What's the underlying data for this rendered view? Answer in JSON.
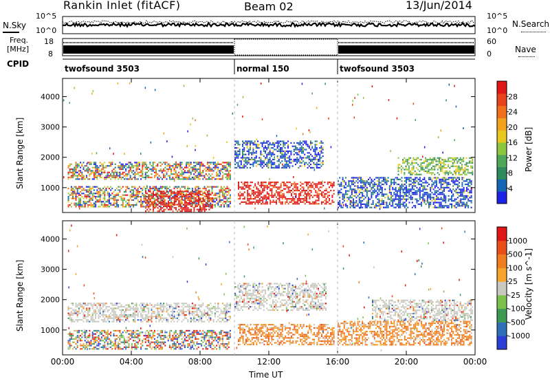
{
  "header": {
    "site": "Rankin Inlet (fitACF)",
    "beam": "Beam 02",
    "date": "13/Jun/2014"
  },
  "noise_panel": {
    "left_label": "N.Sky",
    "right_label": "N.Search",
    "left_ticks": [
      "10^5",
      "10^0"
    ],
    "right_ticks": [
      "10^5",
      "10^0"
    ]
  },
  "freq_panel": {
    "left_label_1": "Freq.",
    "left_label_2": "[MHz]",
    "right_label": "Nave",
    "left_ticks": [
      "18",
      "8"
    ],
    "right_ticks": [
      "60",
      "0"
    ]
  },
  "cpid_panel": {
    "label": "CPID",
    "segments": [
      {
        "start_hour": 0,
        "end_hour": 10,
        "name": "twofsound 3503"
      },
      {
        "start_hour": 10,
        "end_hour": 16,
        "name": "normal 150"
      },
      {
        "start_hour": 16,
        "end_hour": 24,
        "name": "twofsound 3503"
      }
    ]
  },
  "chart_data": [
    {
      "type": "heatmap",
      "ylabel": "Slant Range [km]",
      "yticks": [
        "1000",
        "2000",
        "3000",
        "4000"
      ],
      "ylim": [
        180,
        4600
      ],
      "colorbar": {
        "label": "Power [dB]",
        "ticks": [
          "4",
          "8",
          "12",
          "16",
          "20",
          "24",
          "28"
        ],
        "colors": [
          "#1c22e6",
          "#1565b5",
          "#2f8a5e",
          "#4fa85a",
          "#8ec63f",
          "#e8c81f",
          "#f4a21e",
          "#f0701c",
          "#e8431a",
          "#e01515"
        ]
      },
      "clusters": [
        {
          "x0": 0.3,
          "x1": 9.8,
          "y0": 1250,
          "y1": 1850,
          "level": "mixed"
        },
        {
          "x0": 0.3,
          "x1": 9.8,
          "y0": 350,
          "y1": 1050,
          "level": "mixed"
        },
        {
          "x0": 4.8,
          "x1": 8.8,
          "y0": 180,
          "y1": 900,
          "level": "high"
        },
        {
          "x0": 10.0,
          "x1": 15.2,
          "y0": 1650,
          "y1": 2550,
          "level": "low"
        },
        {
          "x0": 10.2,
          "x1": 15.8,
          "y0": 450,
          "y1": 1200,
          "level": "high"
        },
        {
          "x0": 16.0,
          "x1": 23.8,
          "y0": 300,
          "y1": 1350,
          "level": "low"
        },
        {
          "x0": 19.5,
          "x1": 23.9,
          "y0": 1400,
          "y1": 2000,
          "level": "mid"
        }
      ]
    },
    {
      "type": "heatmap",
      "ylabel": "Slant Range [km]",
      "yticks": [
        "1000",
        "2000",
        "3000",
        "4000"
      ],
      "ylim": [
        180,
        4600
      ],
      "xlabel": "Time UT",
      "xticks": [
        "00:00",
        "04:00",
        "08:00",
        "12:00",
        "16:00",
        "20:00",
        "00:00"
      ],
      "colorbar": {
        "label": "Velocity [m s^-1]",
        "ticks": [
          "1000",
          "500",
          "100",
          "25",
          "-25",
          "-100",
          "-500",
          "-1000"
        ],
        "colors": [
          "#2b3fd6",
          "#2f6fb8",
          "#3d9a55",
          "#7cc24a",
          "#c8c8c0",
          "#f6a42a",
          "#f07d1f",
          "#eb4f18",
          "#e01515"
        ]
      },
      "clusters": [
        {
          "x0": 0.3,
          "x1": 9.8,
          "y0": 1250,
          "y1": 1900,
          "level": "grey"
        },
        {
          "x0": 0.3,
          "x1": 9.8,
          "y0": 350,
          "y1": 1000,
          "level": "mixed"
        },
        {
          "x0": 10.0,
          "x1": 15.4,
          "y0": 1600,
          "y1": 2550,
          "level": "grey"
        },
        {
          "x0": 10.2,
          "x1": 15.8,
          "y0": 500,
          "y1": 1200,
          "level": "orange"
        },
        {
          "x0": 16.0,
          "x1": 23.8,
          "y0": 500,
          "y1": 1300,
          "level": "orange"
        },
        {
          "x0": 18.0,
          "x1": 23.9,
          "y0": 1300,
          "y1": 2000,
          "level": "grey"
        }
      ]
    }
  ]
}
